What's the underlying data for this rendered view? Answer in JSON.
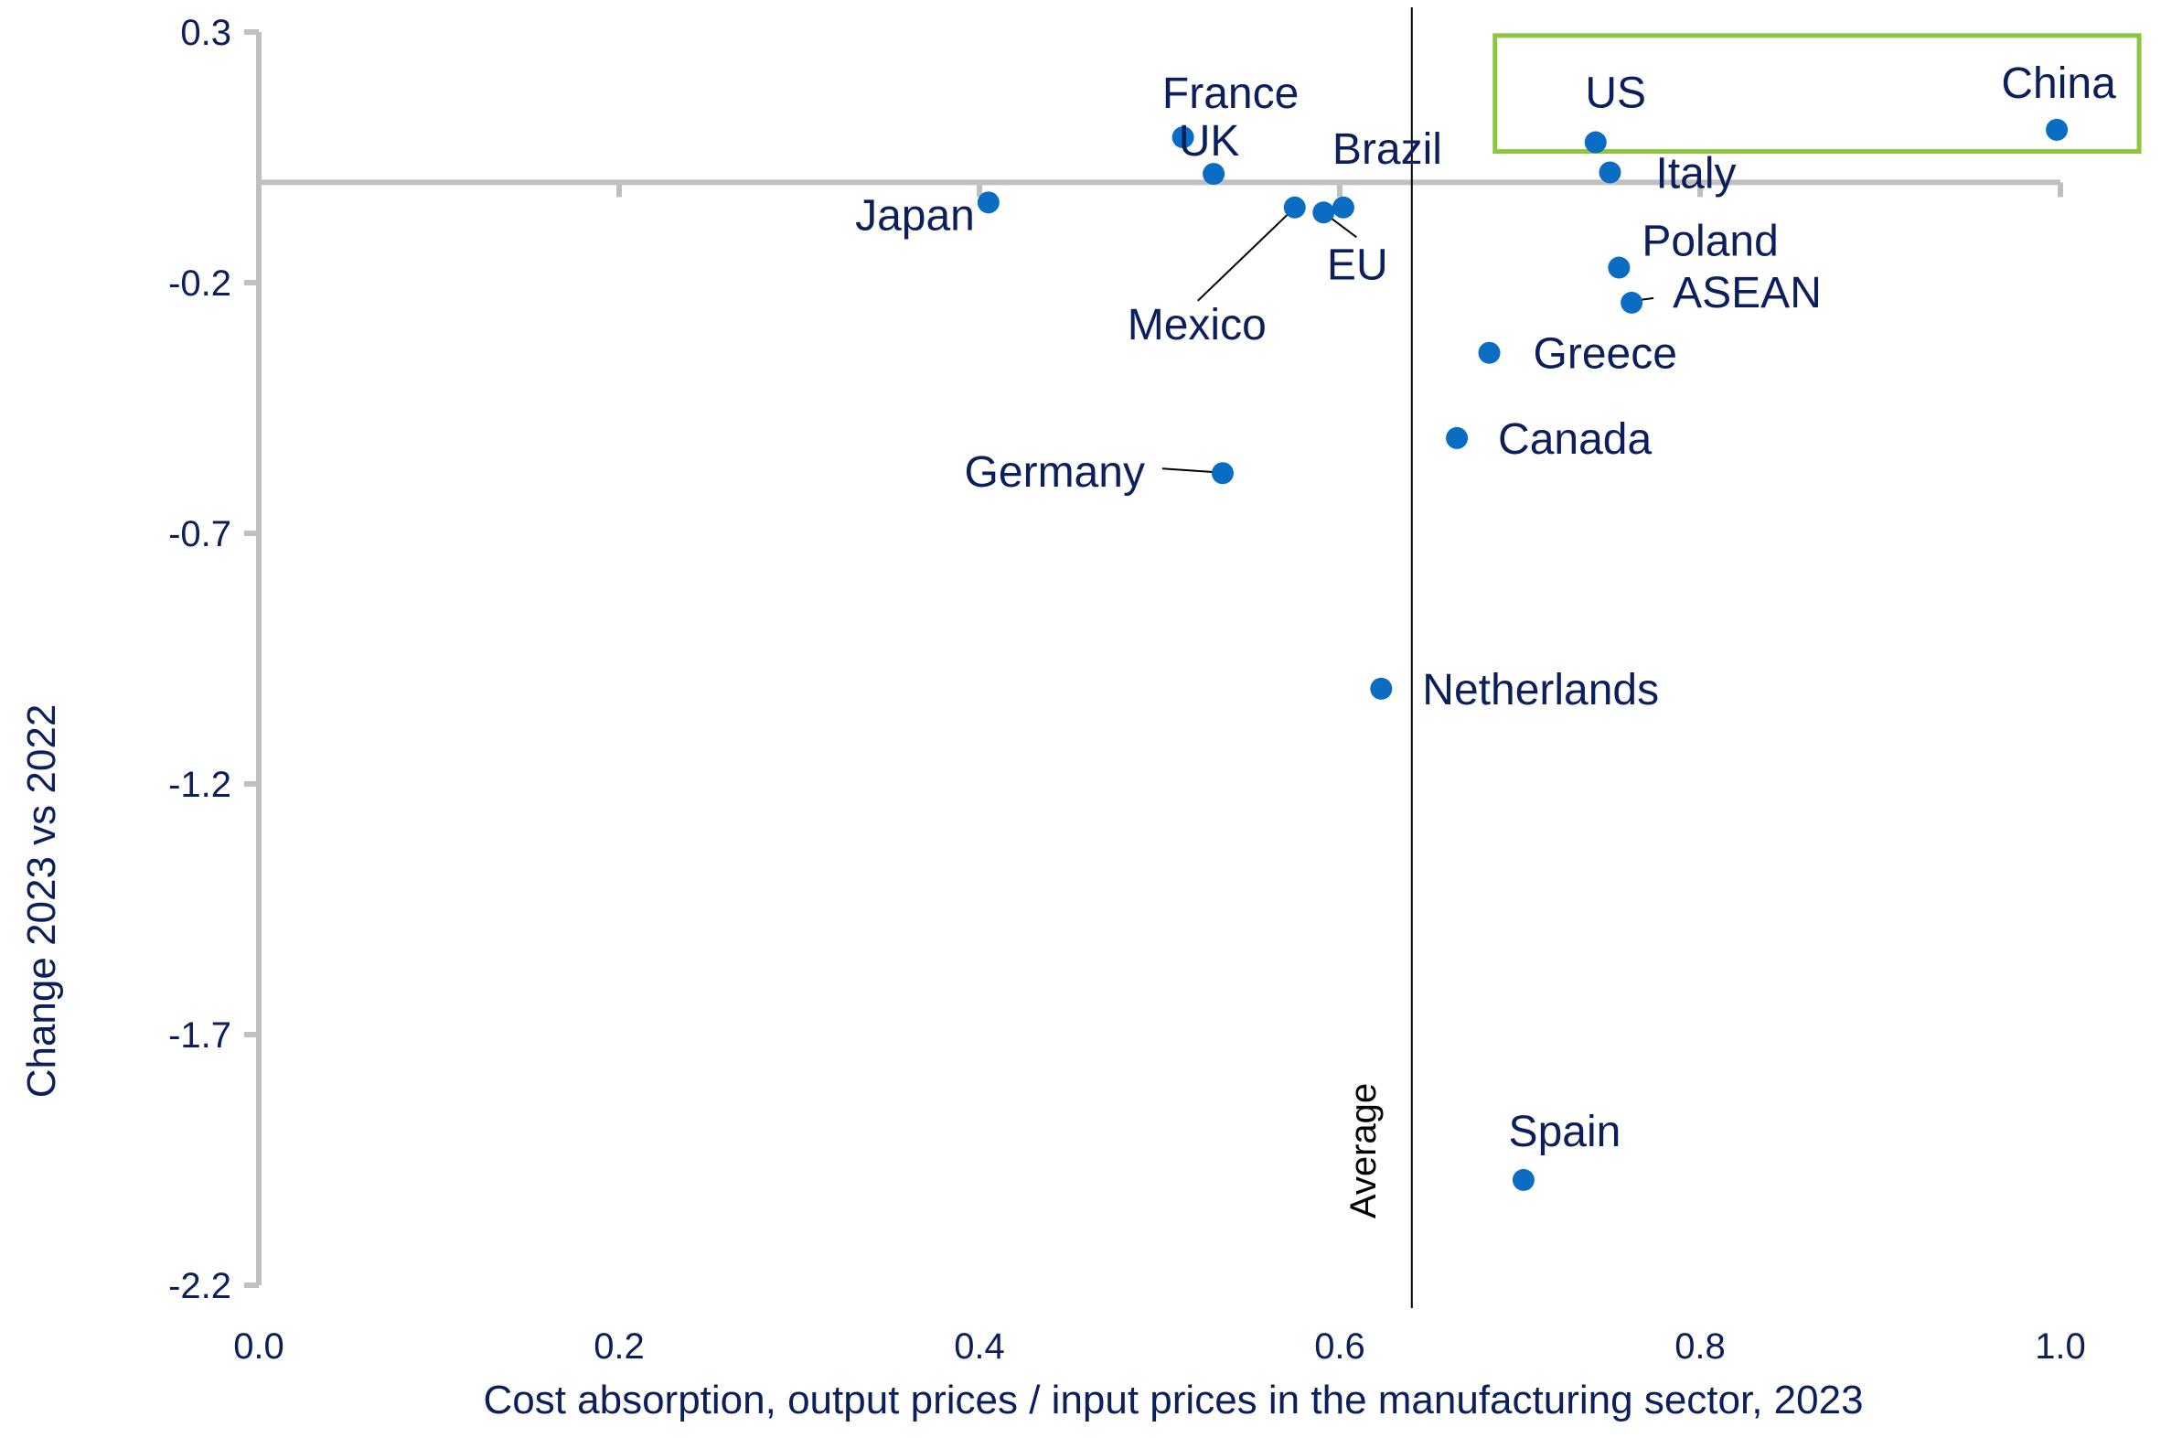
{
  "chart_data": {
    "type": "scatter",
    "title": "",
    "xlabel": "Cost absorption, output prices / input prices in the manufacturing sector, 2023",
    "ylabel": "Change 2023 vs 2022",
    "xlim": [
      0.0,
      1.0
    ],
    "ylim": [
      -2.2,
      0.3
    ],
    "x_ticks": [
      "0.0",
      "0.2",
      "0.4",
      "0.6",
      "0.8",
      "1.0"
    ],
    "y_ticks": [
      "0.3",
      "-0.2",
      "-0.7",
      "-1.2",
      "-1.7",
      "-2.2"
    ],
    "average_x": 0.64,
    "average_label": "Average",
    "point_color": "#0a6cc2",
    "highlight_color": "#8cc63f",
    "highlight": [
      "US",
      "China"
    ],
    "points": [
      {
        "name": "France",
        "x": 0.513,
        "y": 0.09
      },
      {
        "name": "Japan",
        "x": 0.405,
        "y": -0.04
      },
      {
        "name": "UK",
        "x": 0.53,
        "y": 0.017
      },
      {
        "name": "Brazil",
        "x": 0.602,
        "y": -0.05
      },
      {
        "name": "EU",
        "x": 0.591,
        "y": -0.06
      },
      {
        "name": "Mexico",
        "x": 0.575,
        "y": -0.05
      },
      {
        "name": "US",
        "x": 0.742,
        "y": 0.08
      },
      {
        "name": "China",
        "x": 0.998,
        "y": 0.105
      },
      {
        "name": "Italy",
        "x": 0.75,
        "y": 0.02
      },
      {
        "name": "Poland",
        "x": 0.755,
        "y": -0.17
      },
      {
        "name": "ASEAN",
        "x": 0.762,
        "y": -0.24
      },
      {
        "name": "Greece",
        "x": 0.683,
        "y": -0.34
      },
      {
        "name": "Canada",
        "x": 0.665,
        "y": -0.51
      },
      {
        "name": "Germany",
        "x": 0.535,
        "y": -0.58
      },
      {
        "name": "Netherlands",
        "x": 0.623,
        "y": -1.01
      },
      {
        "name": "Spain",
        "x": 0.702,
        "y": -1.99
      }
    ]
  }
}
